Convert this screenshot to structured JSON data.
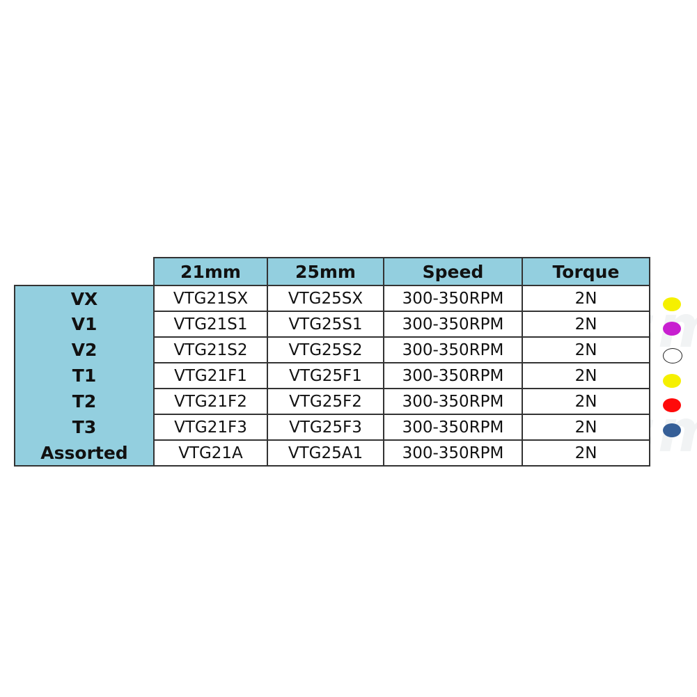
{
  "watermark": "easyinsmile",
  "table": {
    "headers": [
      "",
      "21mm",
      "25mm",
      "Speed",
      "Torque"
    ],
    "rows": [
      {
        "label": "VX",
        "mm21": "VTG21SX",
        "mm25": "VTG25SX",
        "speed": "300-350RPM",
        "torque": "2N"
      },
      {
        "label": "V1",
        "mm21": "VTG21S1",
        "mm25": "VTG25S1",
        "speed": "300-350RPM",
        "torque": "2N"
      },
      {
        "label": "V2",
        "mm21": "VTG21S2",
        "mm25": "VTG25S2",
        "speed": "300-350RPM",
        "torque": "2N"
      },
      {
        "label": "T1",
        "mm21": "VTG21F1",
        "mm25": "VTG25F1",
        "speed": "300-350RPM",
        "torque": "2N"
      },
      {
        "label": "T2",
        "mm21": "VTG21F2",
        "mm25": "VTG25F2",
        "speed": "300-350RPM",
        "torque": "2N"
      },
      {
        "label": "T3",
        "mm21": "VTG21F3",
        "mm25": "VTG25F3",
        "speed": "300-350RPM",
        "torque": "2N"
      },
      {
        "label": "Assorted",
        "mm21": "VTG21A",
        "mm25": "VTG25A1",
        "speed": "300-350RPM",
        "torque": "2N"
      }
    ]
  },
  "color_dots": [
    "#f5f000",
    "#c81fd0",
    "#ffffff",
    "#f5f000",
    "#ff0a0a",
    "#365f97"
  ],
  "colors": {
    "header_bg": "#93cfdf",
    "border": "#333333"
  }
}
